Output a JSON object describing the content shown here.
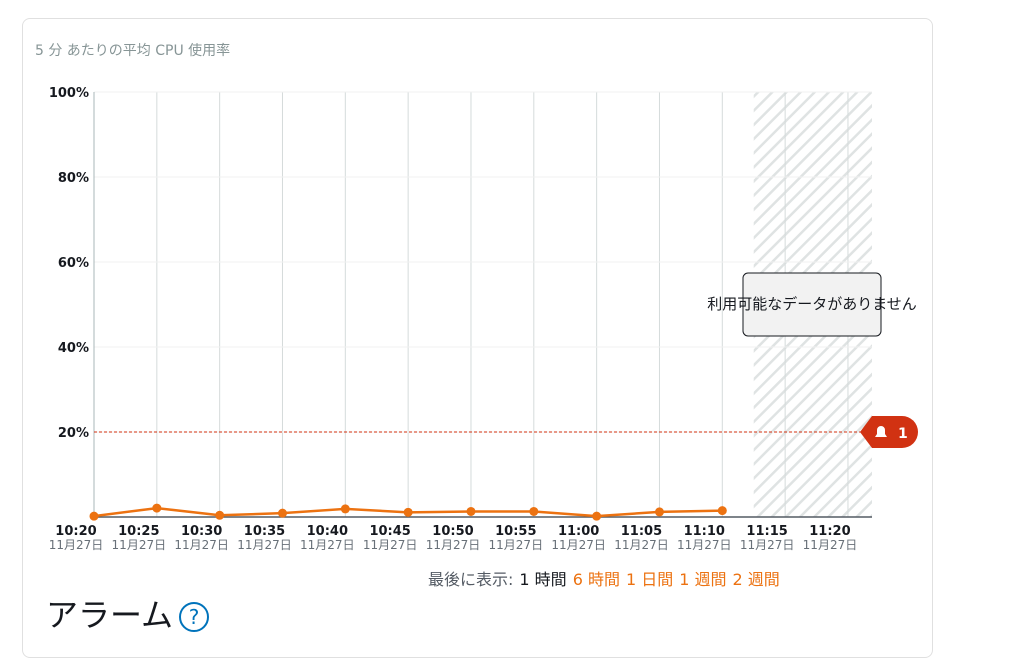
{
  "chart_data": {
    "type": "line",
    "title": "5 分 あたりの平均 CPU 使用率",
    "categories": [
      "10:20",
      "10:25",
      "10:30",
      "10:35",
      "10:40",
      "10:45",
      "10:50",
      "10:55",
      "11:00",
      "11:05",
      "11:10",
      "11:15",
      "11:20"
    ],
    "dates": [
      "11月27日",
      "11月27日",
      "11月27日",
      "11月27日",
      "11月27日",
      "11月27日",
      "11月27日",
      "11月27日",
      "11月27日",
      "11月27日",
      "11月27日",
      "11月27日",
      "11月27日"
    ],
    "series": [
      {
        "name": "CPU",
        "color": "#ec7211",
        "values": [
          0.2,
          2.1,
          0.4,
          0.9,
          1.9,
          1.1,
          1.3,
          1.3,
          0.2,
          1.2,
          1.5,
          null,
          null
        ]
      }
    ],
    "ylim": [
      0,
      100
    ],
    "yticks": [
      {
        "value": 20,
        "label": "20%"
      },
      {
        "value": 40,
        "label": "40%"
      },
      {
        "value": 60,
        "label": "60%"
      },
      {
        "value": 80,
        "label": "80%"
      },
      {
        "value": 100,
        "label": "100%"
      }
    ],
    "grid": true,
    "threshold": 20,
    "threshold_color": "#d13212",
    "alarm_count": 1,
    "no_data_label": "利用可能なデータがありません"
  },
  "time_range": {
    "label": "最後に表示:",
    "options": [
      "1 時間",
      "6 時間",
      "1 日間",
      "1 週間",
      "2 週間"
    ],
    "selected": 0
  },
  "section_title": "アラーム",
  "help_icon": "?"
}
